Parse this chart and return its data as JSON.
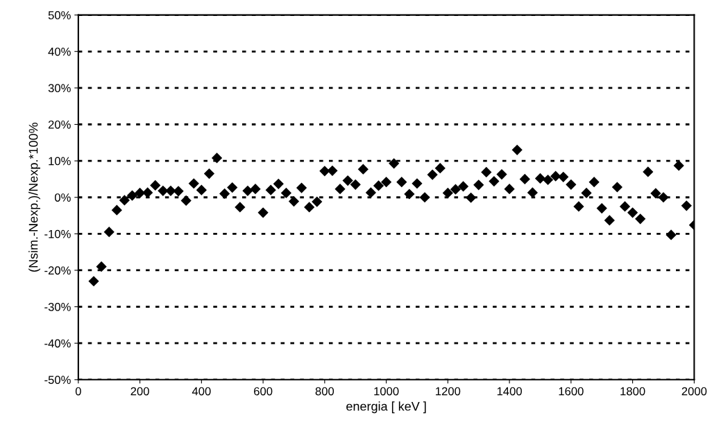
{
  "chart_data": {
    "type": "scatter",
    "xlabel": "energia [ keV ]",
    "ylabel": "(Nsim.-Nexp.)/Nexp.*100%",
    "x": [
      50,
      75,
      100,
      125,
      150,
      175,
      200,
      225,
      250,
      275,
      300,
      325,
      350,
      375,
      400,
      425,
      450,
      475,
      500,
      525,
      550,
      575,
      600,
      625,
      650,
      675,
      700,
      725,
      750,
      775,
      800,
      825,
      850,
      875,
      900,
      925,
      950,
      975,
      1000,
      1025,
      1050,
      1075,
      1100,
      1125,
      1150,
      1175,
      1200,
      1225,
      1250,
      1275,
      1300,
      1325,
      1350,
      1375,
      1400,
      1425,
      1450,
      1475,
      1500,
      1525,
      1550,
      1575,
      1600,
      1625,
      1650,
      1675,
      1700,
      1725,
      1750,
      1775,
      1800,
      1825,
      1850,
      1875,
      1900,
      1925,
      1950,
      1975,
      2000
    ],
    "series": [
      {
        "color": "#000000",
        "values": [
          -23,
          -19,
          -9.5,
          -3.5,
          -0.8,
          0.5,
          1.2,
          1.3,
          3.3,
          1.8,
          1.8,
          1.7,
          -0.9,
          3.8,
          2,
          6.5,
          10.8,
          1,
          2.7,
          -2.7,
          1.8,
          2.3,
          -4.2,
          2,
          3.7,
          1.2,
          -1.1,
          2.6,
          -2.7,
          -1.2,
          7.2,
          7.3,
          2.3,
          4.6,
          3.5,
          7.7,
          1.3,
          3.2,
          4.2,
          9.3,
          4.2,
          0.9,
          3.8,
          0,
          6.2,
          8,
          1.2,
          2.2,
          3,
          -0.1,
          3.4,
          6.9,
          4.4,
          6.3,
          2.3,
          13,
          5,
          1.3,
          5.2,
          4.8,
          5.8,
          5.6,
          3.5,
          -2.5,
          1.2,
          4.2,
          -3,
          -6.3,
          2.8,
          -2.5,
          -4.2,
          -5.9,
          7,
          1.1,
          0,
          -10.3,
          8.7,
          -2.3,
          -7.6
        ]
      }
    ],
    "marker": "diamond",
    "grid": "y",
    "line_style": "dotted",
    "xlim": [
      0,
      2000
    ],
    "xticks": [
      0,
      200,
      400,
      600,
      800,
      1000,
      1200,
      1400,
      1600,
      1800,
      2000
    ],
    "ylim": [
      -50,
      50
    ],
    "yticks": [
      {
        "value": -50,
        "label": "-50%"
      },
      {
        "value": -40,
        "label": "-40%"
      },
      {
        "value": -30,
        "label": "-30%"
      },
      {
        "value": -20,
        "label": "-20%"
      },
      {
        "value": -10,
        "label": "-10%"
      },
      {
        "value": 0,
        "label": "0%"
      },
      {
        "value": 10,
        "label": "10%"
      },
      {
        "value": 20,
        "label": "20%"
      },
      {
        "value": 30,
        "label": "30%"
      },
      {
        "value": 40,
        "label": "40%"
      },
      {
        "value": 50,
        "label": "50%"
      }
    ]
  }
}
